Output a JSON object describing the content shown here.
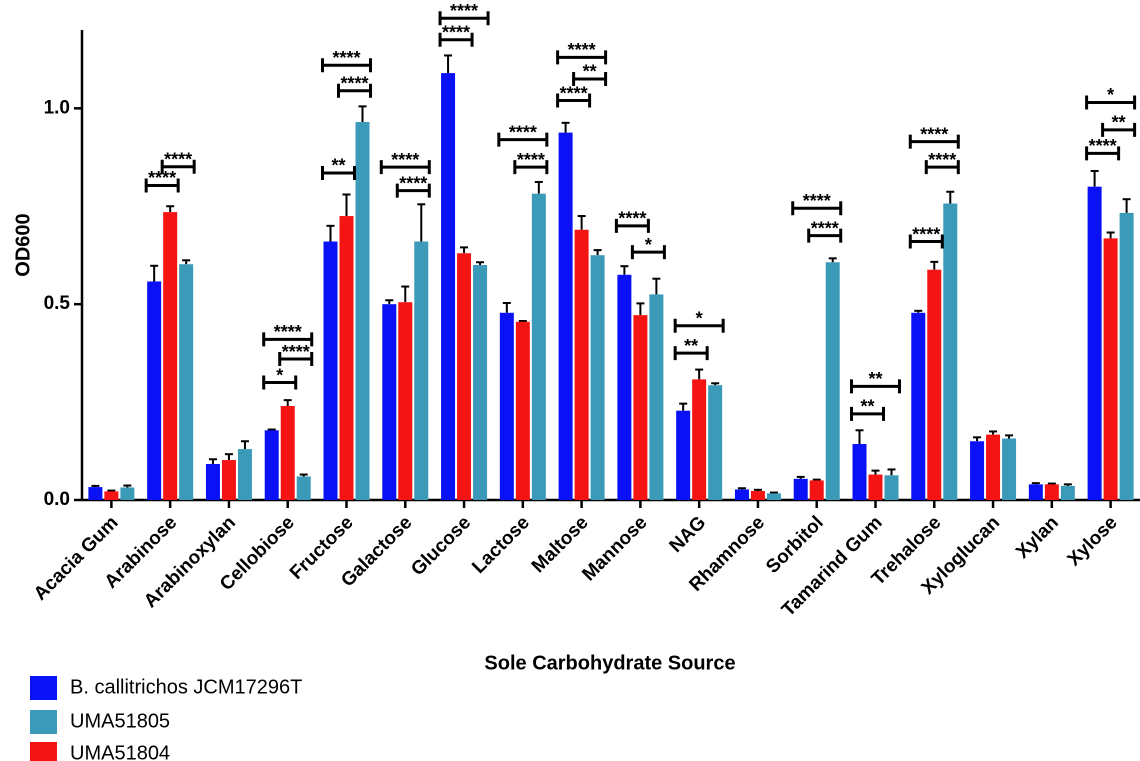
{
  "chart_data": {
    "type": "bar",
    "y_label": "OD600",
    "x_label": "Sole Carbohydrate Source",
    "categories": [
      "Acacia Gum",
      "Arabinose",
      "Arabinoxylan",
      "Cellobiose",
      "Fructose",
      "Galactose",
      "Glucose",
      "Lactose",
      "Maltose",
      "Mannose",
      "NAG",
      "Rhamnose",
      "Sorbitol",
      "Tamarind Gum",
      "Trehalose",
      "Xyloglucan",
      "Xylan",
      "Xylose"
    ],
    "series": [
      {
        "name": "B. callitrichos JCM17296T",
        "color": "#0a12f5",
        "values": [
          0.033,
          0.558,
          0.092,
          0.178,
          0.66,
          0.5,
          1.09,
          0.478,
          0.938,
          0.575,
          0.228,
          0.027,
          0.054,
          0.143,
          0.478,
          0.15,
          0.04,
          0.8
        ],
        "errors": [
          0.003,
          0.04,
          0.012,
          0.002,
          0.04,
          0.01,
          0.045,
          0.025,
          0.025,
          0.022,
          0.018,
          0.003,
          0.005,
          0.035,
          0.005,
          0.01,
          0.003,
          0.04
        ]
      },
      {
        "name": "UMA51805",
        "color": "#3a9ab8",
        "values": [
          0.032,
          0.602,
          0.13,
          0.06,
          0.965,
          0.66,
          0.6,
          0.782,
          0.625,
          0.525,
          0.293,
          0.017,
          0.607,
          0.063,
          0.757,
          0.157,
          0.036,
          0.733
        ],
        "errors": [
          0.005,
          0.01,
          0.02,
          0.005,
          0.04,
          0.095,
          0.007,
          0.03,
          0.013,
          0.04,
          0.005,
          0.002,
          0.01,
          0.015,
          0.03,
          0.008,
          0.004,
          0.035
        ]
      },
      {
        "name": "UMA51804",
        "color": "#f51414",
        "values": [
          0.022,
          0.735,
          0.102,
          0.24,
          0.725,
          0.505,
          0.63,
          0.455,
          0.69,
          0.472,
          0.308,
          0.023,
          0.05,
          0.065,
          0.588,
          0.167,
          0.04,
          0.668
        ],
        "errors": [
          0.002,
          0.015,
          0.015,
          0.015,
          0.055,
          0.04,
          0.015,
          0.002,
          0.035,
          0.03,
          0.025,
          0.003,
          0.002,
          0.01,
          0.02,
          0.008,
          0.002,
          0.015
        ]
      }
    ],
    "ylim": [
      0,
      1.2
    ],
    "yticks": [
      {
        "value": 0,
        "label": "0.0"
      },
      0.5,
      {
        "value": 1,
        "label": "1.0"
      }
    ],
    "annotations": [
      {
        "group": 1,
        "bars": [
          0,
          2
        ],
        "y": 0.803,
        "label": "****"
      },
      {
        "group": 1,
        "bars": [
          2,
          1
        ],
        "y": 0.851,
        "label": "****"
      },
      {
        "group": 3,
        "bars": [
          0,
          2
        ],
        "y": 0.3,
        "label": "*"
      },
      {
        "group": 3,
        "bars": [
          2,
          1
        ],
        "y": 0.36,
        "label": "****"
      },
      {
        "group": 3,
        "bars": [
          0,
          1
        ],
        "y": 0.41,
        "label": "****"
      },
      {
        "group": 4,
        "bars": [
          0,
          2
        ],
        "y": 0.835,
        "label": "**"
      },
      {
        "group": 4,
        "bars": [
          2,
          1
        ],
        "y": 1.045,
        "label": "****"
      },
      {
        "group": 4,
        "bars": [
          0,
          1
        ],
        "y": 1.11,
        "label": "****"
      },
      {
        "group": 5,
        "bars": [
          2,
          1
        ],
        "y": 0.79,
        "label": "****"
      },
      {
        "group": 5,
        "bars": [
          0,
          1
        ],
        "y": 0.85,
        "label": "****"
      },
      {
        "group": 6,
        "bars": [
          0,
          2
        ],
        "y": 1.175,
        "label": "****"
      },
      {
        "group": 6,
        "bars": [
          0,
          1
        ],
        "y": 1.23,
        "label": "****"
      },
      {
        "group": 7,
        "bars": [
          2,
          1
        ],
        "y": 0.85,
        "label": "****"
      },
      {
        "group": 7,
        "bars": [
          0,
          1
        ],
        "y": 0.92,
        "label": "****"
      },
      {
        "group": 8,
        "bars": [
          0,
          2
        ],
        "y": 1.02,
        "label": "****"
      },
      {
        "group": 8,
        "bars": [
          2,
          1
        ],
        "y": 1.075,
        "label": "**"
      },
      {
        "group": 8,
        "bars": [
          0,
          1
        ],
        "y": 1.13,
        "label": "****"
      },
      {
        "group": 9,
        "bars": [
          2,
          1
        ],
        "y": 0.633,
        "label": "*"
      },
      {
        "group": 9,
        "bars": [
          0,
          2
        ],
        "y": 0.7,
        "label": "****"
      },
      {
        "group": 10,
        "bars": [
          0,
          2
        ],
        "y": 0.375,
        "label": "**"
      },
      {
        "group": 10,
        "bars": [
          0,
          1
        ],
        "y": 0.445,
        "label": "*"
      },
      {
        "group": 12,
        "bars": [
          2,
          1
        ],
        "y": 0.675,
        "label": "****"
      },
      {
        "group": 12,
        "bars": [
          0,
          1
        ],
        "y": 0.745,
        "label": "****"
      },
      {
        "group": 13,
        "bars": [
          0,
          2
        ],
        "y": 0.22,
        "label": "**"
      },
      {
        "group": 13,
        "bars": [
          0,
          1
        ],
        "y": 0.29,
        "label": "**"
      },
      {
        "group": 14,
        "bars": [
          0,
          2
        ],
        "y": 0.66,
        "label": "****"
      },
      {
        "group": 14,
        "bars": [
          2,
          1
        ],
        "y": 0.85,
        "label": "****"
      },
      {
        "group": 14,
        "bars": [
          0,
          1
        ],
        "y": 0.915,
        "label": "****"
      },
      {
        "group": 17,
        "bars": [
          0,
          2
        ],
        "y": 0.885,
        "label": "****"
      },
      {
        "group": 17,
        "bars": [
          2,
          1
        ],
        "y": 0.945,
        "label": "**"
      },
      {
        "group": 17,
        "bars": [
          0,
          1
        ],
        "y": 1.015,
        "label": "*"
      }
    ]
  }
}
